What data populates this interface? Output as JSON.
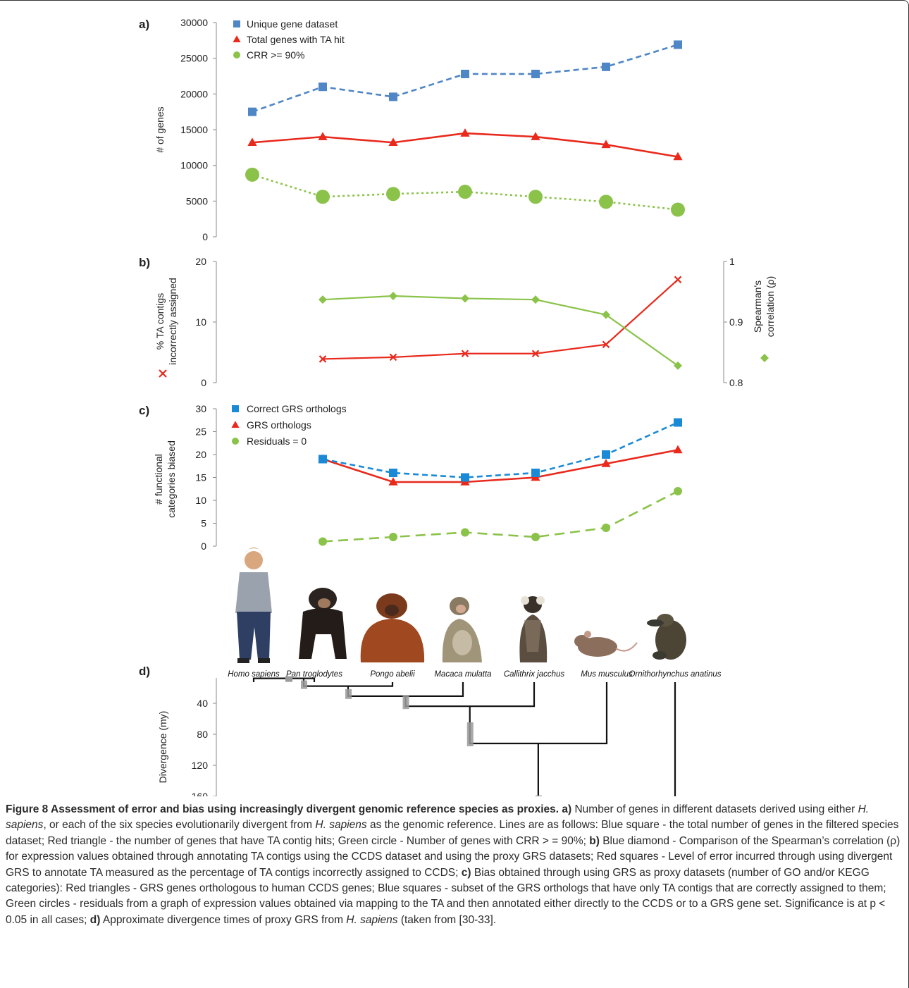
{
  "chart_data": [
    {
      "panel": "a)",
      "type": "line",
      "ylabel": "# of genes",
      "ylim": [
        0,
        30000
      ],
      "yticks": [
        "0",
        "5000",
        "10000",
        "15000",
        "20000",
        "25000",
        "30000"
      ],
      "x_index": [
        0,
        1,
        2,
        3,
        4,
        5,
        6
      ],
      "series": [
        {
          "name": "Unique gene dataset",
          "marker": "square",
          "line": "dashed",
          "color": "#4f86c6",
          "values": [
            17500,
            21000,
            19600,
            22800,
            22800,
            23800,
            26900
          ]
        },
        {
          "name": "Total genes with TA hit",
          "marker": "triangle",
          "line": "solid",
          "color": "#e8291c",
          "values": [
            13200,
            14000,
            13200,
            14500,
            14000,
            12900,
            11200
          ]
        },
        {
          "name": "CRR >= 90%",
          "marker": "circle",
          "line": "dotted",
          "color": "#8bc34a",
          "values": [
            8700,
            5600,
            6000,
            6300,
            5600,
            4900,
            3800
          ]
        }
      ]
    },
    {
      "panel": "b)",
      "type": "line",
      "ylabel_left": "% TA contigs incorrectly assigned",
      "ylabel_right": "Spearman's correlation (ρ)",
      "ylim_left": [
        0,
        20
      ],
      "ylim_right": [
        0.8,
        1.0
      ],
      "yticks_left": [
        "0",
        "10",
        "20"
      ],
      "yticks_right": [
        "0.8",
        "0.9",
        "1"
      ],
      "x_index": [
        1,
        2,
        3,
        4,
        5,
        6
      ],
      "series": [
        {
          "marker": "x",
          "axis": "left",
          "color": "#e8291c",
          "values": [
            3.9,
            4.2,
            4.8,
            4.8,
            6.3,
            17.0
          ]
        },
        {
          "marker": "diamond",
          "axis": "right",
          "color": "#8bc34a",
          "values": [
            0.937,
            0.943,
            0.939,
            0.937,
            0.912,
            0.828
          ]
        }
      ]
    },
    {
      "panel": "c)",
      "type": "line",
      "ylabel": "# functional categories biased",
      "ylim": [
        0,
        30
      ],
      "yticks": [
        "0",
        "5",
        "10",
        "15",
        "20",
        "25",
        "30"
      ],
      "x_index": [
        1,
        2,
        3,
        4,
        5,
        6
      ],
      "series": [
        {
          "name": "Correct GRS orthologs",
          "marker": "square",
          "line": "dashed",
          "color": "#1b8ad6",
          "values": [
            19,
            16,
            15,
            16,
            20,
            27
          ]
        },
        {
          "name": "GRS orthologs",
          "marker": "triangle",
          "line": "solid",
          "color": "#e8291c",
          "values": [
            19,
            14,
            14,
            15,
            18,
            21
          ]
        },
        {
          "name": "Residuals = 0",
          "marker": "circle",
          "line": "longdash",
          "color": "#8bc34a",
          "values": [
            1,
            2,
            3,
            2,
            4,
            12
          ]
        }
      ]
    },
    {
      "panel": "d)",
      "type": "tree",
      "ylabel": "Divergence (my)",
      "ylim": [
        0,
        160
      ],
      "yticks": [
        "40",
        "80",
        "120",
        "160"
      ],
      "species": [
        "Homo sapiens",
        "Pan troglodytes",
        "Pongo abelii",
        "Macaca mulatta",
        "Callithrix jacchus",
        "Mus musculus",
        "Ornithorhynchus anatinus"
      ],
      "node_divergence_my": [
        6,
        16,
        29,
        42,
        90,
        166
      ]
    }
  ],
  "species_images": [
    "human",
    "chimpanzee",
    "orangutan",
    "macaque",
    "marmoset",
    "mouse",
    "platypus"
  ],
  "caption": {
    "title": "Figure 8 Assessment of error and bias using increasingly divergent genomic reference species as proxies.",
    "a_label": "a)",
    "a_text1": " Number of genes in different datasets derived using either ",
    "a_species1": "H. sapiens",
    "a_text2": ", or each of the six species evolutionarily divergent from ",
    "a_species2": "H. sapiens",
    "a_text3": " as the genomic reference. Lines are as follows: Blue square - the total number of genes in the filtered species dataset; Red triangle - the number of genes that have TA contig hits; Green circle - Number of genes with CRR > = 90%; ",
    "b_label": "b)",
    "b_text": " Blue diamond - Comparison of the Spearman’s correlation (ρ) for expression values obtained through annotating TA contigs using the CCDS dataset and using the proxy GRS datasets; Red squares - Level of error incurred through using divergent GRS to annotate TA measured as the percentage of TA contigs incorrectly assigned to CCDS; ",
    "c_label": "c)",
    "c_text": " Bias obtained through using GRS as proxy datasets (number of GO and/or KEGG categories): Red triangles - GRS genes orthologous to human CCDS genes; Blue squares - subset of the GRS orthologs that have only TA contigs that are correctly assigned to them; Green circles - residuals from a graph of expression values obtained via mapping to the TA and then annotated either directly to the CCDS or to a GRS gene set. Significance is at p < 0.05 in all cases; ",
    "d_label": "d)",
    "d_text1": " Approximate divergence times of proxy GRS from ",
    "d_species": "H. sapiens",
    "d_text2": " (taken from [30-33]."
  }
}
